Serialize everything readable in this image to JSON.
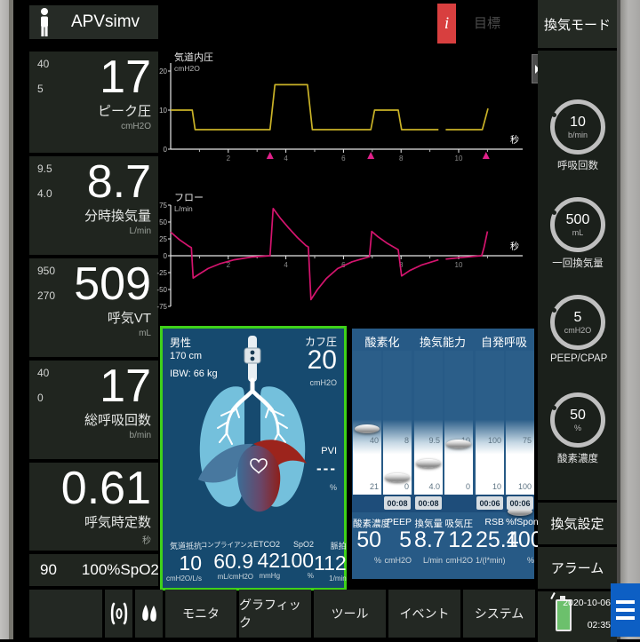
{
  "colors": {
    "accent_green": "#3fd119",
    "panel_blue": "#164a6f",
    "metrics_blue": "#275a86",
    "pressure_wave": "#c9b227",
    "flow_wave": "#d4146e",
    "trigger": "#e0218a",
    "alarm_red": "#d83f3f",
    "menu_blue": "#0d5fc4"
  },
  "mode": {
    "label": "APVsimv"
  },
  "top_bar": {
    "info_label": "i",
    "target_label": "目標"
  },
  "left_params": [
    {
      "high": "40",
      "low": "5",
      "value": "17",
      "label": "ピーク圧",
      "unit": "cmH2O"
    },
    {
      "high": "9.5",
      "low": "4.0",
      "value": "8.7",
      "label": "分時換気量",
      "unit": "L/min"
    },
    {
      "high": "950",
      "low": "270",
      "value": "509",
      "label": "呼気VT",
      "unit": "mL"
    },
    {
      "high": "40",
      "low": "0",
      "value": "17",
      "label": "総呼吸回数",
      "unit": "b/min"
    },
    {
      "high": "",
      "low": "",
      "value": "0.61",
      "label": "呼気時定数",
      "unit": "秒"
    }
  ],
  "spo2_row": {
    "low": "90",
    "high": "100%",
    "label": "SpO2"
  },
  "waveforms": {
    "pressure": {
      "title": "気道内圧",
      "unit": "cmH2O",
      "yticks": [
        20,
        10,
        0
      ],
      "xticks": [
        2,
        4,
        6,
        8,
        10
      ],
      "xminor": [
        1,
        3,
        5,
        7,
        9,
        11
      ],
      "xunit": "秒",
      "segments": [
        [
          [
            0,
            10
          ],
          [
            0.75,
            10
          ],
          [
            0.85,
            5
          ],
          [
            3.45,
            5
          ],
          [
            3.62,
            16.5
          ],
          [
            4.75,
            16.5
          ],
          [
            4.92,
            5
          ],
          [
            6.95,
            5
          ],
          [
            7.08,
            10
          ],
          [
            7.9,
            10
          ],
          [
            8.02,
            5
          ],
          [
            9.3,
            5
          ]
        ],
        [
          [
            9.55,
            5
          ],
          [
            10.82,
            5
          ],
          [
            11.02,
            10.4
          ]
        ]
      ],
      "triggers": [
        3.45,
        6.95,
        10.95
      ]
    },
    "flow": {
      "title": "フロー",
      "unit": "L/min",
      "yticks": [
        75,
        50,
        25,
        0,
        -25,
        -50,
        -75
      ],
      "xticks": [
        2,
        4,
        6,
        8,
        10
      ],
      "xminor": [
        1,
        3,
        5,
        7,
        9,
        11
      ],
      "xunit": "秒",
      "segments": [
        [
          [
            0,
            35
          ],
          [
            0.3,
            24
          ],
          [
            0.6,
            15
          ],
          [
            0.72,
            12
          ],
          [
            0.78,
            -33
          ],
          [
            1.0,
            -27
          ],
          [
            1.3,
            -19
          ],
          [
            1.7,
            -12
          ],
          [
            2.2,
            -6
          ],
          [
            2.8,
            -2
          ],
          [
            3.3,
            -0.5
          ],
          [
            3.45,
            0
          ],
          [
            3.56,
            70
          ],
          [
            3.8,
            56
          ],
          [
            4.1,
            41
          ],
          [
            4.4,
            27
          ],
          [
            4.7,
            15
          ],
          [
            4.78,
            13
          ],
          [
            4.87,
            -65
          ],
          [
            5.1,
            -50
          ],
          [
            5.4,
            -34
          ],
          [
            5.8,
            -19
          ],
          [
            6.3,
            -9
          ],
          [
            6.9,
            -1.5
          ],
          [
            6.98,
            36
          ],
          [
            7.2,
            28
          ],
          [
            7.5,
            19
          ],
          [
            7.9,
            9
          ],
          [
            8.02,
            -30
          ],
          [
            8.3,
            -22
          ],
          [
            8.7,
            -14
          ],
          [
            9.3,
            -6
          ]
        ],
        [
          [
            9.55,
            -5
          ],
          [
            10.0,
            -3
          ],
          [
            10.5,
            -1
          ],
          [
            10.8,
            0
          ],
          [
            10.88,
            12
          ],
          [
            11.0,
            36
          ]
        ]
      ],
      "triggers": []
    }
  },
  "chart_data": [
    {
      "type": "line",
      "title": "気道内圧",
      "ylabel": "cmH2O",
      "xlabel": "秒",
      "ylim": [
        0,
        20
      ],
      "xlim": [
        0,
        12
      ],
      "series": [
        {
          "name": "airway-pressure",
          "x": [
            0,
            0.75,
            0.85,
            3.45,
            3.62,
            4.75,
            4.92,
            6.95,
            7.08,
            7.9,
            8.02,
            9.3,
            9.55,
            10.82,
            11.02
          ],
          "values": [
            10,
            10,
            5,
            5,
            16.5,
            16.5,
            5,
            5,
            10,
            10,
            5,
            5,
            5,
            5,
            10.4
          ]
        }
      ]
    },
    {
      "type": "line",
      "title": "フロー",
      "ylabel": "L/min",
      "xlabel": "秒",
      "ylim": [
        -75,
        75
      ],
      "xlim": [
        0,
        12
      ],
      "series": [
        {
          "name": "flow",
          "x": [
            0,
            0.72,
            0.78,
            2.8,
            3.45,
            3.56,
            4.7,
            4.87,
            6.9,
            6.98,
            7.9,
            8.02,
            9.3,
            9.55,
            10.8,
            11.0
          ],
          "values": [
            35,
            12,
            -33,
            -2,
            0,
            70,
            15,
            -65,
            -1.5,
            36,
            9,
            -30,
            -6,
            -5,
            0,
            36
          ]
        }
      ]
    }
  ],
  "patient_panel": {
    "sex": "男性",
    "height": "170 cm",
    "ibw": "IBW:  66 kg",
    "cuff": {
      "label": "カフ圧",
      "value": "20",
      "unit": "cmH2O"
    },
    "pvi": {
      "label": "PVI",
      "value": "---",
      "unit": "%"
    },
    "metrics": [
      {
        "label": "気道抵抗",
        "value": "10",
        "unit": "cmH2O/L/s"
      },
      {
        "label": "コンプライアンス",
        "value": "60.9",
        "unit": "mL/cmH2O"
      },
      {
        "label": "ETCO2",
        "value": "42",
        "unit": "mmHg"
      },
      {
        "label": "SpO2",
        "value": "100",
        "unit": "%"
      },
      {
        "label": "脈拍",
        "value": "112",
        "unit": "1/min"
      }
    ]
  },
  "metrics_panel": {
    "groups": [
      "酸素化",
      "換気能力",
      "自発呼吸"
    ],
    "columns": [
      {
        "scale_top": "40",
        "scale_bot": "21",
        "timer": "",
        "label": "酸素濃度",
        "value": "50",
        "unit": "%",
        "disc_y": 88
      },
      {
        "scale_top": "8",
        "scale_bot": "0",
        "timer": "00:08",
        "label": "PEEP",
        "value": "5",
        "unit": "cmH2O",
        "disc_y": 143
      },
      {
        "scale_top": "9.5",
        "scale_bot": "4.0",
        "timer": "00:08",
        "label": "換気量",
        "value": "8.7",
        "unit": "L/min",
        "disc_y": 127
      },
      {
        "scale_top": "10",
        "scale_bot": "0",
        "timer": "",
        "label": "吸気圧",
        "value": "12",
        "unit": "cmH2O",
        "disc_y": 105
      },
      {
        "scale_top": "100",
        "scale_bot": "10",
        "timer": "00:06",
        "label": "RSB",
        "value": "25.4",
        "unit": "1/(l*min)",
        "disc_y": 172
      },
      {
        "scale_top": "75",
        "scale_bot": "100",
        "timer": "00:06",
        "label": "%fSpont",
        "value": "100",
        "unit": "%",
        "disc_y": 181
      }
    ]
  },
  "right_sidebar": {
    "mode_button": "換気モード",
    "knobs": [
      {
        "value": "10",
        "unit": "b/min",
        "label": "呼吸回数"
      },
      {
        "value": "500",
        "unit": "mL",
        "label": "一回換気量"
      },
      {
        "value": "5",
        "unit": "cmH2O",
        "label": "PEEP/CPAP"
      },
      {
        "value": "50",
        "unit": "%",
        "label": "酸素濃度"
      }
    ],
    "settings_button": "換気設定",
    "alarm_button": "アラーム",
    "date": "2020-10-06",
    "time": "02:35"
  },
  "bottom_tabs": [
    "モニタ",
    "グラフィック",
    "ツール",
    "イベント",
    "システム"
  ]
}
